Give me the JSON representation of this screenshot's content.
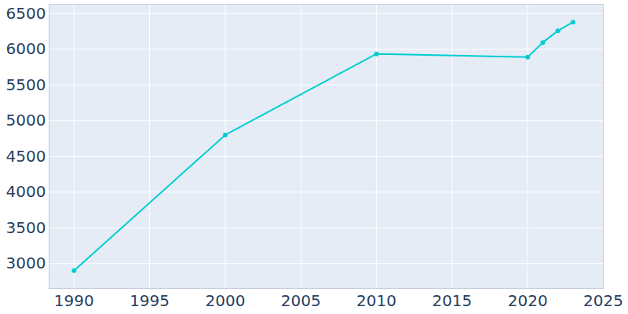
{
  "chart_data": {
    "type": "line",
    "x": [
      1990,
      2000,
      2010,
      2020,
      2021,
      2022,
      2023
    ],
    "values": [
      2900,
      4800,
      5935,
      5890,
      6095,
      6260,
      6380
    ],
    "color": "#00ced1",
    "marker": "circle",
    "xlim": [
      1988.35,
      2025
    ],
    "xticks": [
      1990,
      1995,
      2000,
      2005,
      2010,
      2015,
      2020,
      2025
    ],
    "ylim": [
      2650,
      6630
    ],
    "yticks": [
      3000,
      3500,
      4000,
      4500,
      5000,
      5500,
      6000,
      6500
    ],
    "grid": true
  }
}
